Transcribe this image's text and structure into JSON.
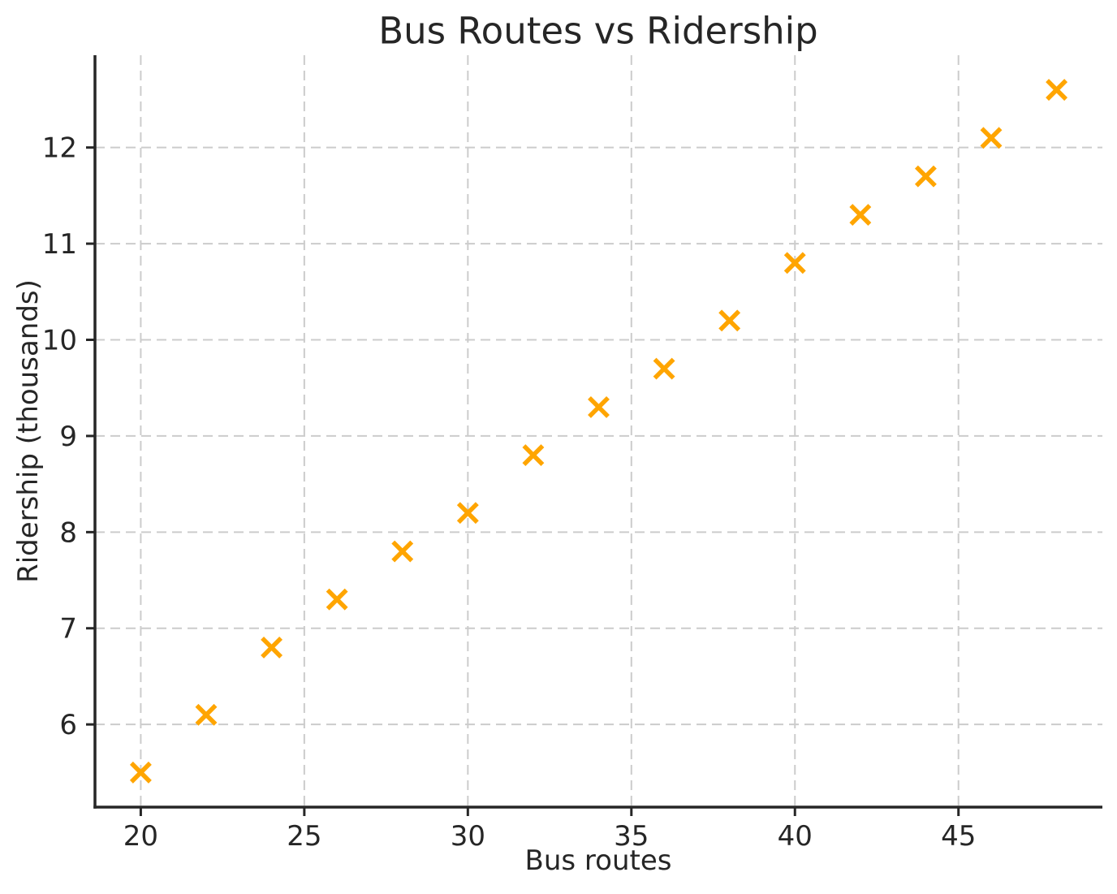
{
  "page": {
    "background": "#ffffff"
  },
  "chart_data": {
    "type": "scatter",
    "title": "Bus Routes vs Ridership",
    "xlabel": "Bus routes",
    "ylabel": "Ridership (thousands)",
    "x": [
      20,
      22,
      24,
      26,
      28,
      30,
      32,
      34,
      36,
      38,
      40,
      42,
      44,
      46,
      48
    ],
    "y": [
      5.5,
      6.1,
      6.8,
      7.3,
      7.8,
      8.2,
      8.8,
      9.3,
      9.7,
      10.2,
      10.8,
      11.3,
      11.7,
      12.1,
      12.6
    ],
    "marker": "x",
    "marker_color": "#FFA500",
    "marker_size": 23,
    "xlim": [
      18.6,
      49.4
    ],
    "ylim": [
      5.14,
      12.96
    ],
    "xticks": [
      20,
      25,
      30,
      35,
      40,
      45
    ],
    "yticks": [
      6,
      7,
      8,
      9,
      10,
      11,
      12
    ],
    "grid": true,
    "grid_style": "dashed",
    "grid_color": "#cccccc",
    "axis_color": "#262626",
    "legend": false
  }
}
